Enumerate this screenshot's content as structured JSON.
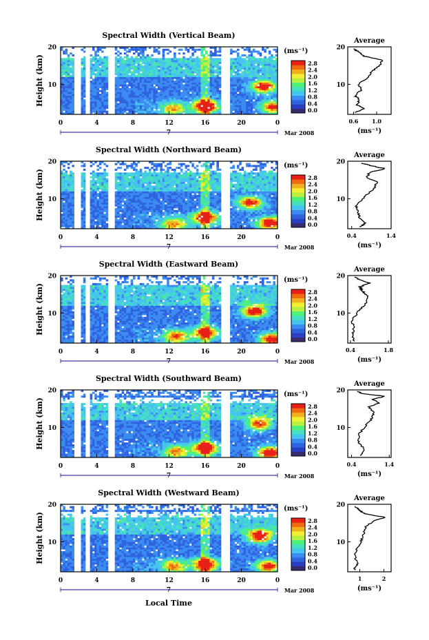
{
  "colors": {
    "colormap": [
      "#3a2a6e",
      "#2a3fbf",
      "#2f62e0",
      "#3b8cf0",
      "#46c4f0",
      "#45e0c0",
      "#4ff07a",
      "#b8f040",
      "#f0f030",
      "#f0b020",
      "#f06a10",
      "#e82018"
    ],
    "gap": "#ffffff",
    "axis": "#000000",
    "timeline": "#3a3aaa"
  },
  "shared": {
    "x_ticks": [
      "0",
      "4",
      "8",
      "12",
      "16",
      "20",
      "0"
    ],
    "y_ticks": [
      "20",
      "10"
    ],
    "ylabel": "Height (km)",
    "colorbar_unit": "(ms⁻¹)",
    "colorbar_ticks": [
      "2.8",
      "2.4",
      "2.0",
      "1.6",
      "1.2",
      "0.8",
      "0.4",
      "0.0"
    ],
    "day_label": "7",
    "date_label": "Mar 2008",
    "avg_title": "Average",
    "avg_xlabel": "(ms⁻¹)",
    "xlabel": "Local Time"
  },
  "chart_data": [
    {
      "type": "heatmap",
      "title": "Spectral Width (Vertical Beam)",
      "x_range": [
        0,
        24
      ],
      "y_range": [
        2,
        20
      ],
      "clim": [
        0.0,
        3.0
      ],
      "gaps": [
        [
          1.6,
          2.2
        ],
        [
          2.7,
          3.3
        ],
        [
          5.3,
          6.0
        ],
        [
          17.8,
          18.8
        ]
      ],
      "hot_spots": [
        [
          16.0,
          4.2,
          3.0
        ],
        [
          12.5,
          3.5,
          1.6
        ],
        [
          22.5,
          9.5,
          2.6
        ],
        [
          23.5,
          4.0,
          2.2
        ]
      ],
      "white_top": 17.0,
      "average_profile": {
        "xlim": [
          0.5,
          1.25
        ],
        "x_ticks": [
          "0.6",
          "1.0"
        ],
        "values": [
          [
            0.62,
            2.5
          ],
          [
            0.78,
            3.5
          ],
          [
            0.66,
            4.5
          ],
          [
            0.7,
            6.0
          ],
          [
            0.62,
            7.0
          ],
          [
            0.74,
            8.5
          ],
          [
            0.68,
            10.0
          ],
          [
            0.86,
            12.0
          ],
          [
            0.92,
            13.5
          ],
          [
            1.05,
            15.0
          ],
          [
            1.1,
            16.5
          ],
          [
            0.78,
            17.5
          ],
          [
            0.7,
            18.5
          ],
          [
            0.6,
            19.5
          ]
        ]
      }
    },
    {
      "type": "heatmap",
      "title": "Spectral Width (Northward Beam)",
      "x_range": [
        0,
        24
      ],
      "y_range": [
        2,
        20
      ],
      "clim": [
        0.0,
        3.0
      ],
      "gaps": [
        [
          1.6,
          2.2
        ],
        [
          2.7,
          3.3
        ],
        [
          5.3,
          6.0
        ],
        [
          17.8,
          18.8
        ]
      ],
      "hot_spots": [
        [
          16.0,
          5.0,
          2.6
        ],
        [
          12.5,
          3.2,
          1.8
        ],
        [
          21.0,
          9.0,
          2.4
        ],
        [
          23.2,
          3.5,
          2.8
        ]
      ],
      "white_top": 17.0,
      "average_profile": {
        "xlim": [
          0.3,
          1.4
        ],
        "x_ticks": [
          "0.4",
          "1.4"
        ],
        "values": [
          [
            0.62,
            2.5
          ],
          [
            0.75,
            3.5
          ],
          [
            0.6,
            5.0
          ],
          [
            0.55,
            6.5
          ],
          [
            0.52,
            8.0
          ],
          [
            0.72,
            10.5
          ],
          [
            0.95,
            12.5
          ],
          [
            1.05,
            14.5
          ],
          [
            0.78,
            15.5
          ],
          [
            0.85,
            17.0
          ],
          [
            1.25,
            18.0
          ],
          [
            0.9,
            18.8
          ],
          [
            0.65,
            19.5
          ]
        ]
      }
    },
    {
      "type": "heatmap",
      "title": "Spectral Width (Eastward Beam)",
      "x_range": [
        0,
        24
      ],
      "y_range": [
        2,
        20
      ],
      "clim": [
        0.0,
        3.0
      ],
      "gaps": [
        [
          1.6,
          2.2
        ],
        [
          2.7,
          3.3
        ],
        [
          5.3,
          6.0
        ],
        [
          17.8,
          18.8
        ]
      ],
      "hot_spots": [
        [
          16.0,
          4.8,
          2.4
        ],
        [
          12.8,
          3.8,
          2.0
        ],
        [
          21.5,
          10.5,
          2.6
        ],
        [
          23.4,
          3.0,
          2.6
        ]
      ],
      "white_top": 17.5,
      "average_profile": {
        "xlim": [
          0.3,
          1.9
        ],
        "x_ticks": [
          "0.4",
          "1.8"
        ],
        "values": [
          [
            0.55,
            2.5
          ],
          [
            0.48,
            4.0
          ],
          [
            0.52,
            6.0
          ],
          [
            0.46,
            8.0
          ],
          [
            0.7,
            10.5
          ],
          [
            0.95,
            12.5
          ],
          [
            1.05,
            14.5
          ],
          [
            0.82,
            16.0
          ],
          [
            0.75,
            17.0
          ],
          [
            1.1,
            18.0
          ],
          [
            0.7,
            19.0
          ],
          [
            0.55,
            19.6
          ]
        ]
      }
    },
    {
      "type": "heatmap",
      "title": "Spectral Width (Southward Beam)",
      "x_range": [
        0,
        24
      ],
      "y_range": [
        2,
        20
      ],
      "clim": [
        0.0,
        3.0
      ],
      "gaps": [
        [
          1.6,
          2.2
        ],
        [
          2.7,
          3.3
        ],
        [
          5.3,
          6.0
        ],
        [
          17.8,
          18.8
        ]
      ],
      "hot_spots": [
        [
          16.0,
          4.5,
          2.8
        ],
        [
          12.8,
          3.5,
          1.8
        ],
        [
          22.0,
          11.0,
          2.2
        ],
        [
          23.2,
          3.2,
          2.8
        ]
      ],
      "white_top": 16.5,
      "average_profile": {
        "xlim": [
          0.3,
          1.45
        ],
        "x_ticks": [
          "0.4",
          "1.4"
        ],
        "values": [
          [
            0.62,
            2.5
          ],
          [
            0.75,
            4.0
          ],
          [
            0.6,
            6.0
          ],
          [
            0.58,
            8.0
          ],
          [
            0.78,
            10.5
          ],
          [
            0.95,
            12.5
          ],
          [
            1.0,
            14.0
          ],
          [
            0.85,
            15.5
          ],
          [
            1.15,
            16.5
          ],
          [
            0.95,
            17.5
          ],
          [
            1.3,
            18.3
          ],
          [
            0.7,
            19.0
          ],
          [
            0.55,
            19.6
          ]
        ]
      }
    },
    {
      "type": "heatmap",
      "title": "Spectral Width (Westward Beam)",
      "x_range": [
        0,
        24
      ],
      "y_range": [
        2,
        20
      ],
      "clim": [
        0.0,
        3.0
      ],
      "gaps": [
        [
          1.6,
          2.2
        ],
        [
          2.7,
          3.3
        ],
        [
          5.3,
          6.0
        ],
        [
          17.8,
          18.8
        ]
      ],
      "hot_spots": [
        [
          16.0,
          4.0,
          2.8
        ],
        [
          12.5,
          3.5,
          1.8
        ],
        [
          22.0,
          11.5,
          2.6
        ],
        [
          23.0,
          3.5,
          2.4
        ]
      ],
      "white_top": 16.5,
      "average_profile": {
        "xlim": [
          0.5,
          2.3
        ],
        "x_ticks": [
          "1",
          "2"
        ],
        "values": [
          [
            0.75,
            2.5
          ],
          [
            0.9,
            4.0
          ],
          [
            0.8,
            6.0
          ],
          [
            0.85,
            8.0
          ],
          [
            1.05,
            10.0
          ],
          [
            1.15,
            12.0
          ],
          [
            1.25,
            14.0
          ],
          [
            1.55,
            15.5
          ],
          [
            2.05,
            16.5
          ],
          [
            1.2,
            17.5
          ],
          [
            0.95,
            18.5
          ],
          [
            0.8,
            19.5
          ]
        ]
      }
    }
  ]
}
